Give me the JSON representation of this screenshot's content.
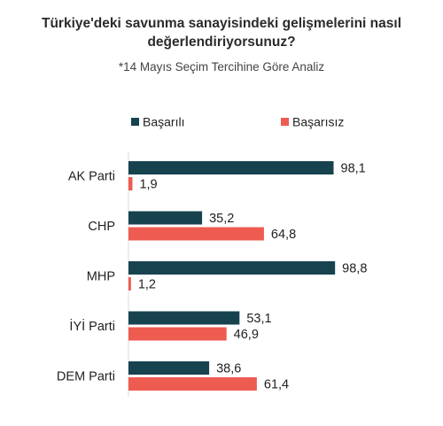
{
  "title_line1": "Türkiye'deki savunma sanayisindeki gelişmelerini nasıl",
  "title_line2": "değerlendiriyorsunuz?",
  "subtitle": "*14 Mayıs Seçim Tercihine Göre Analiz",
  "chart_data": {
    "type": "bar",
    "orientation": "horizontal",
    "categories": [
      "AK Parti",
      "CHP",
      "MHP",
      "İYİ Parti",
      "DEM Parti"
    ],
    "series": [
      {
        "name": "Başarılı",
        "color": "#17434f",
        "values": [
          98.1,
          35.2,
          98.8,
          53.1,
          38.6
        ],
        "labels": [
          "98,1",
          "35,2",
          "98,8",
          "53,1",
          "38,6"
        ]
      },
      {
        "name": "Başarısız",
        "color": "#ee5b50",
        "values": [
          1.9,
          64.8,
          1.2,
          46.9,
          61.4
        ],
        "labels": [
          "1,9",
          "64,8",
          "1,2",
          "46,9",
          "61,4"
        ]
      }
    ],
    "xlim": [
      0,
      100
    ],
    "legend_position": "top",
    "grid": false
  }
}
